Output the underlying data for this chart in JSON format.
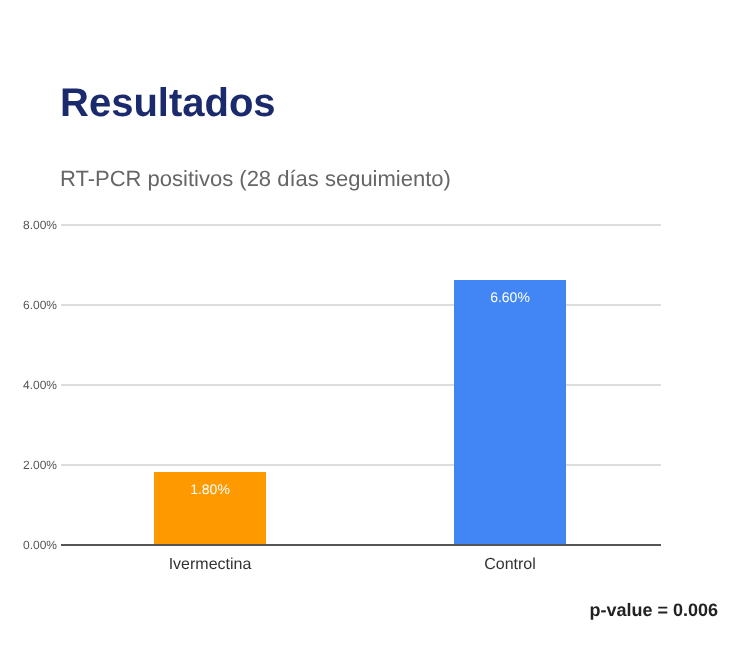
{
  "chart_data": {
    "type": "bar",
    "title": "Resultados",
    "subtitle": "RT-PCR positivos (28 días seguimiento)",
    "categories": [
      "Ivermectina",
      "Control"
    ],
    "values": [
      1.8,
      6.6
    ],
    "colors": [
      "#ff9900",
      "#4285f4"
    ],
    "value_labels": [
      "1.80%",
      "6.60%"
    ],
    "ylim": [
      0,
      8
    ],
    "yticks": [
      {
        "value": 0,
        "label": "0.00%"
      },
      {
        "value": 2,
        "label": "2.00%"
      },
      {
        "value": 4,
        "label": "4.00%"
      },
      {
        "value": 6,
        "label": "6.00%"
      },
      {
        "value": 8,
        "label": "8.00%"
      }
    ],
    "grid": "y",
    "annotations": [
      "p-value = 0.006"
    ]
  }
}
